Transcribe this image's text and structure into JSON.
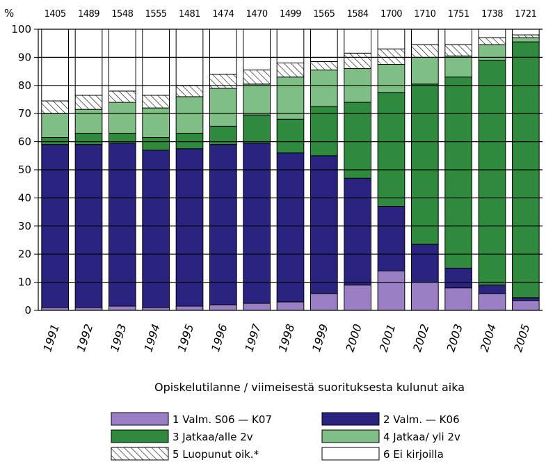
{
  "chart_data": {
    "type": "bar",
    "stacked": true,
    "ylabel": "%",
    "xlabel": "Opiskelutilanne / viimeisestä suorituksesta kulunut aika",
    "ylim": [
      0,
      100
    ],
    "y_ticks": [
      0,
      10,
      20,
      30,
      40,
      50,
      60,
      70,
      80,
      90,
      100
    ],
    "grid": true,
    "legend_position": "bottom",
    "categories": [
      "1991",
      "1992",
      "1993",
      "1994",
      "1995",
      "1996",
      "1997",
      "1998",
      "1999",
      "2000",
      "2001",
      "2002",
      "2003",
      "2004",
      "2005"
    ],
    "counts": [
      "1405",
      "1489",
      "1548",
      "1555",
      "1481",
      "1474",
      "1470",
      "1499",
      "1565",
      "1584",
      "1700",
      "1710",
      "1751",
      "1738",
      "1721"
    ],
    "series": [
      {
        "name": "1 Valm. S06 — K07",
        "color": "#9a7fc4",
        "pattern": "solid",
        "values": [
          1,
          1,
          1.5,
          1,
          1.5,
          2,
          2.5,
          3,
          6,
          9,
          14,
          10,
          8,
          6,
          3.5
        ]
      },
      {
        "name": "2 Valm. — K06",
        "color": "#2a2480",
        "pattern": "solid",
        "values": [
          58,
          58,
          58,
          56,
          56,
          57,
          57,
          53,
          49,
          38,
          23,
          13.5,
          7,
          3,
          1
        ]
      },
      {
        "name": "3 Jatkaa/alle 2v",
        "color": "#2f8a3e",
        "pattern": "solid",
        "values": [
          2.5,
          4,
          3.5,
          4.5,
          5.5,
          6.5,
          10,
          12,
          17.5,
          27,
          40.5,
          57,
          68,
          80,
          91
        ]
      },
      {
        "name": "4 Jatkaa/ yli 2v",
        "color": "#7fbf85",
        "pattern": "solid",
        "values": [
          8.5,
          8.5,
          11,
          10.5,
          13,
          13.5,
          11,
          15,
          13,
          12,
          10,
          9.5,
          7.5,
          5.5,
          1.5
        ]
      },
      {
        "name": "5 Luopunut oik.*",
        "color": "#ffffff",
        "pattern": "hatch",
        "values": [
          4.5,
          5,
          4,
          4.5,
          4,
          5,
          5,
          5,
          3,
          5.5,
          5.5,
          4.5,
          4,
          2.5,
          1
        ]
      },
      {
        "name": "6 Ei kirjoilla",
        "color": "#ffffff",
        "pattern": "solid",
        "values": [
          25.5,
          23.5,
          22,
          23.5,
          20,
          16,
          14.5,
          12,
          11.5,
          8.5,
          7,
          5.5,
          5.5,
          3,
          2
        ]
      }
    ]
  }
}
